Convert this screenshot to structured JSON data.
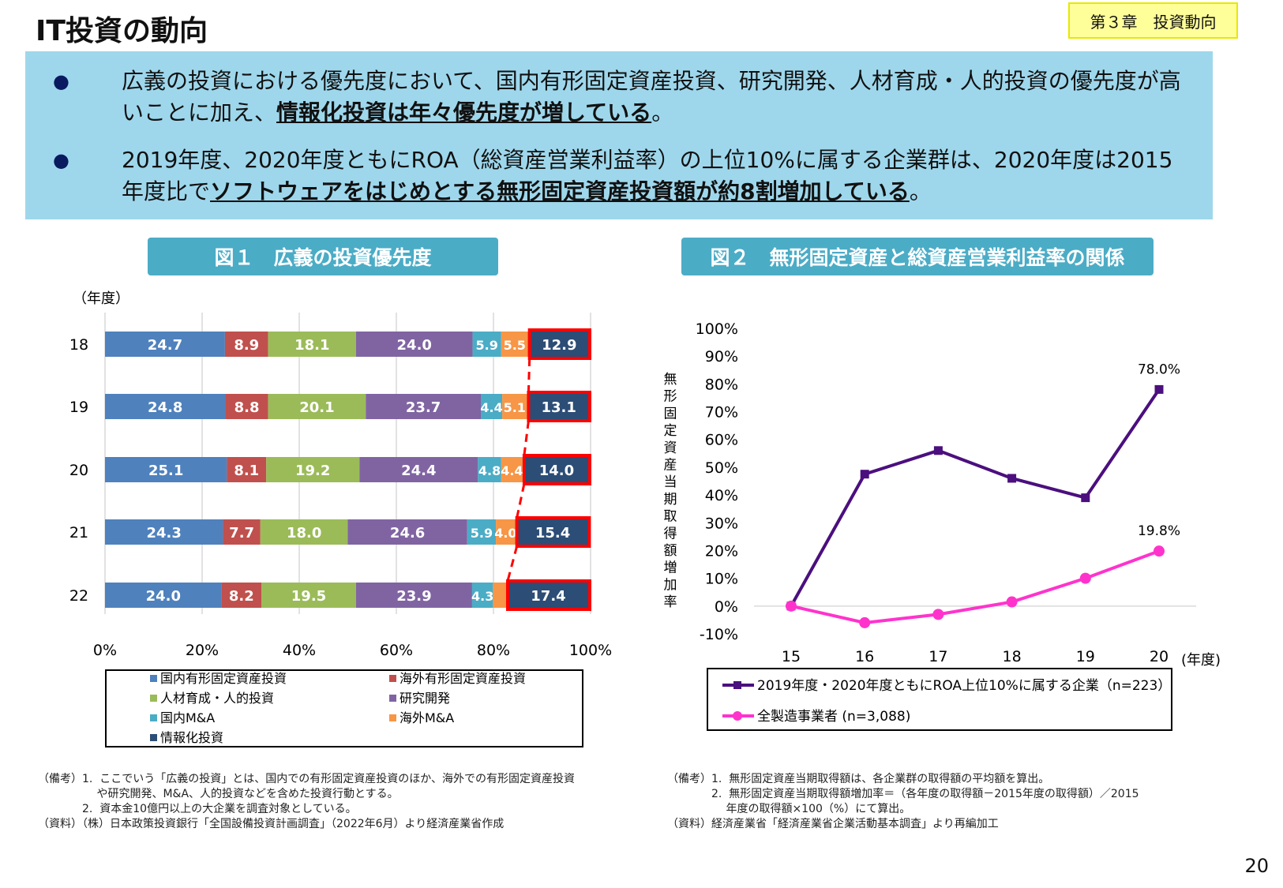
{
  "header": {
    "title": "IT投資の動向",
    "chapter": "第３章　投資動向"
  },
  "summary": {
    "bullets": [
      {
        "pre": "広義の投資における優先度において、国内有形固定資産投資、研究開発、人材育成・人的投資の優先度が高いことに加え、",
        "em": "情報化投資は年々優先度が増している",
        "post": "。"
      },
      {
        "pre": "2019年度、2020年度ともにROA（総資産営業利益率）の上位10%に属する企業群は、2020年度は2015年度比で",
        "em": "ソフトウェアをはじめとする無形固定資産投資額が約8割増加している",
        "post": "。"
      }
    ]
  },
  "figures": {
    "fig1_title": "図１　広義の投資優先度",
    "fig2_title": "図２　無形固定資産と総資産営業利益率の関係"
  },
  "chart_data": [
    {
      "type": "bar",
      "stacked": true,
      "orientation": "horizontal",
      "ylabel": "（年度）",
      "categories": [
        "18",
        "19",
        "20",
        "21",
        "22"
      ],
      "xlim": [
        0,
        100
      ],
      "xticks": [
        "0%",
        "20%",
        "40%",
        "60%",
        "80%",
        "100%"
      ],
      "series": [
        {
          "name": "国内有形固定資産投資",
          "color": "#4f81bd",
          "values": [
            24.7,
            24.8,
            25.1,
            24.3,
            24.0
          ]
        },
        {
          "name": "海外有形固定資産投資",
          "color": "#c0504d",
          "values": [
            8.9,
            8.8,
            8.1,
            7.7,
            8.2
          ]
        },
        {
          "name": "人材育成・人的投資",
          "color": "#9bbb59",
          "values": [
            18.1,
            20.1,
            19.2,
            18.0,
            19.5
          ]
        },
        {
          "name": "研究開発",
          "color": "#8064a2",
          "values": [
            24.0,
            23.7,
            24.4,
            24.6,
            23.9
          ]
        },
        {
          "name": "国内M&A",
          "color": "#4bacc6",
          "values": [
            5.9,
            4.4,
            4.8,
            5.9,
            4.3
          ]
        },
        {
          "name": "海外M&A",
          "color": "#f79646",
          "values": [
            5.5,
            5.1,
            4.4,
            4.0,
            2.7
          ]
        },
        {
          "name": "情報化投資",
          "color": "#2c4d75",
          "values": [
            12.9,
            13.1,
            14.0,
            15.4,
            17.4
          ]
        }
      ],
      "hidden_labels": {
        "海外M&A": [
          false,
          false,
          false,
          false,
          true
        ]
      },
      "highlight_series": "情報化投資",
      "highlight_color": "#ff0000",
      "legend": "bottom"
    },
    {
      "type": "line",
      "ylabel": "無形固定資産当期取得額増加率",
      "xlabel": "(年度)",
      "x": [
        "15",
        "16",
        "17",
        "18",
        "19",
        "20"
      ],
      "ylim": [
        -10,
        100
      ],
      "yticks": [
        "100%",
        "90%",
        "80%",
        "70%",
        "60%",
        "50%",
        "40%",
        "30%",
        "20%",
        "10%",
        "0%",
        "-10%"
      ],
      "series": [
        {
          "name": "2019年度・2020年度ともにROA上位10%に属する企業（n=223）",
          "color": "#4b0f7e",
          "marker": "square",
          "values": [
            0,
            47.5,
            56,
            46,
            39,
            78.0
          ],
          "label_last": "78.0%"
        },
        {
          "name": "全製造事業者 (n=3,088)",
          "color": "#ff33cc",
          "marker": "circle",
          "values": [
            0,
            -6,
            -3,
            1.5,
            10,
            19.8
          ],
          "label_last": "19.8%"
        }
      ],
      "legend": "bottom"
    }
  ],
  "notes": {
    "left": "（備考）1.  ここでいう「広義の投資」とは、国内での有形固定資産投資のほか、海外での有形固定資産投資\n　　　　　 や研究開発、M&A、人的投資などを含めた投資行動とする。\n　　　　2.  資本金10億円以上の大企業を調査対象としている。\n（資料）（株）日本政策投資銀行「全国設備投資計画調査」（2022年6月）より経済産業省作成",
    "right": "（備考）1.  無形固定資産当期取得額は、各企業群の取得額の平均額を算出。\n　　　　2.  無形固定資産当期取得額増加率＝（各年度の取得額－2015年度の取得額）／2015\n　　　　　 年度の取得額×100（%）にて算出。\n（資料）経済産業省「経済産業省企業活動基本調査」より再編加工"
  },
  "page_number": "20"
}
